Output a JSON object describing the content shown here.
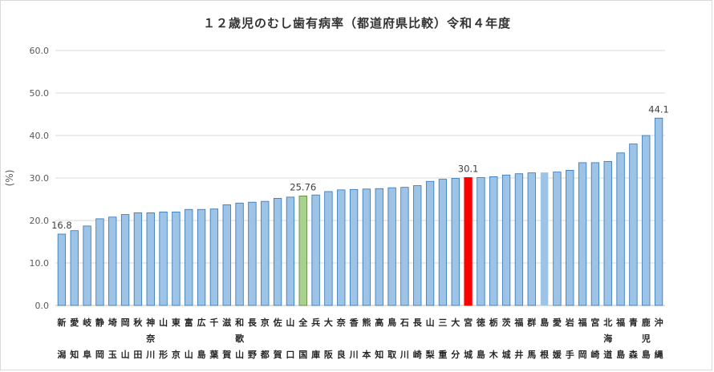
{
  "chart_data": {
    "type": "bar",
    "title": "１２歳児のむし歯有病率（都道府県比較）令和４年度",
    "ylabel": "(%)",
    "ylim": [
      0,
      60
    ],
    "yticks": [
      "0.0",
      "10.0",
      "20.0",
      "30.0",
      "40.0",
      "50.0",
      "60.0"
    ],
    "grid": true,
    "categories": [
      [
        "新",
        "潟"
      ],
      [
        "愛",
        "知"
      ],
      [
        "岐",
        "阜"
      ],
      [
        "静",
        "岡"
      ],
      [
        "埼",
        "玉"
      ],
      [
        "岡",
        "山"
      ],
      [
        "秋",
        "田"
      ],
      [
        "神",
        "奈",
        "川"
      ],
      [
        "山",
        "形"
      ],
      [
        "東",
        "京"
      ],
      [
        "富",
        "山"
      ],
      [
        "広",
        "島"
      ],
      [
        "千",
        "葉"
      ],
      [
        "滋",
        "賀"
      ],
      [
        "和",
        "歌",
        "山"
      ],
      [
        "長",
        "野"
      ],
      [
        "京",
        "都"
      ],
      [
        "佐",
        "賀"
      ],
      [
        "山",
        "口"
      ],
      [
        "全",
        "国"
      ],
      [
        "兵",
        "庫"
      ],
      [
        "大",
        "阪"
      ],
      [
        "奈",
        "良"
      ],
      [
        "香",
        "川"
      ],
      [
        "熊",
        "本"
      ],
      [
        "高",
        "知"
      ],
      [
        "鳥",
        "取"
      ],
      [
        "石",
        "川"
      ],
      [
        "長",
        "崎"
      ],
      [
        "山",
        "梨"
      ],
      [
        "三",
        "重"
      ],
      [
        "大",
        "分"
      ],
      [
        "宮",
        "城"
      ],
      [
        "徳",
        "島"
      ],
      [
        "栃",
        "木"
      ],
      [
        "茨",
        "城"
      ],
      [
        "福",
        "井"
      ],
      [
        "群",
        "馬"
      ],
      [
        "島",
        "根"
      ],
      [
        "愛",
        "媛"
      ],
      [
        "岩",
        "手"
      ],
      [
        "福",
        "岡"
      ],
      [
        "宮",
        "崎"
      ],
      [
        "北",
        "海",
        "道"
      ],
      [
        "福",
        "島"
      ],
      [
        "青",
        "森"
      ],
      [
        "鹿",
        "児",
        "島"
      ],
      [
        "沖",
        "縄"
      ]
    ],
    "values": [
      16.8,
      17.6,
      18.7,
      20.4,
      20.8,
      21.4,
      21.8,
      21.8,
      22.0,
      22.0,
      22.6,
      22.6,
      22.7,
      23.7,
      24.1,
      24.3,
      24.5,
      25.2,
      25.5,
      25.76,
      26.0,
      26.8,
      27.2,
      27.3,
      27.4,
      27.5,
      27.7,
      27.8,
      28.2,
      29.2,
      29.7,
      29.9,
      30.1,
      30.1,
      30.3,
      30.7,
      31.0,
      31.2,
      31.3,
      31.4,
      31.8,
      33.6,
      33.6,
      33.9,
      35.9,
      38.0,
      40.0,
      44.1
    ],
    "data_labels": [
      {
        "index": 0,
        "text": "16.8"
      },
      {
        "index": 19,
        "text": "25.76"
      },
      {
        "index": 32,
        "text": "30.1"
      },
      {
        "index": 47,
        "text": "44.1"
      }
    ],
    "colors": {
      "default": "#9dc3e6",
      "default_stroke": "#2e75b6",
      "highlight_national": "#a9d18e",
      "highlight_national_stroke": "#548235",
      "highlight_miyagi": "#ff0000",
      "highlight_shimane": "#9dc3e6",
      "grid": "#d9d9d9"
    },
    "highlights": {
      "national": 19,
      "miyagi": 32,
      "shimane": 38
    }
  }
}
